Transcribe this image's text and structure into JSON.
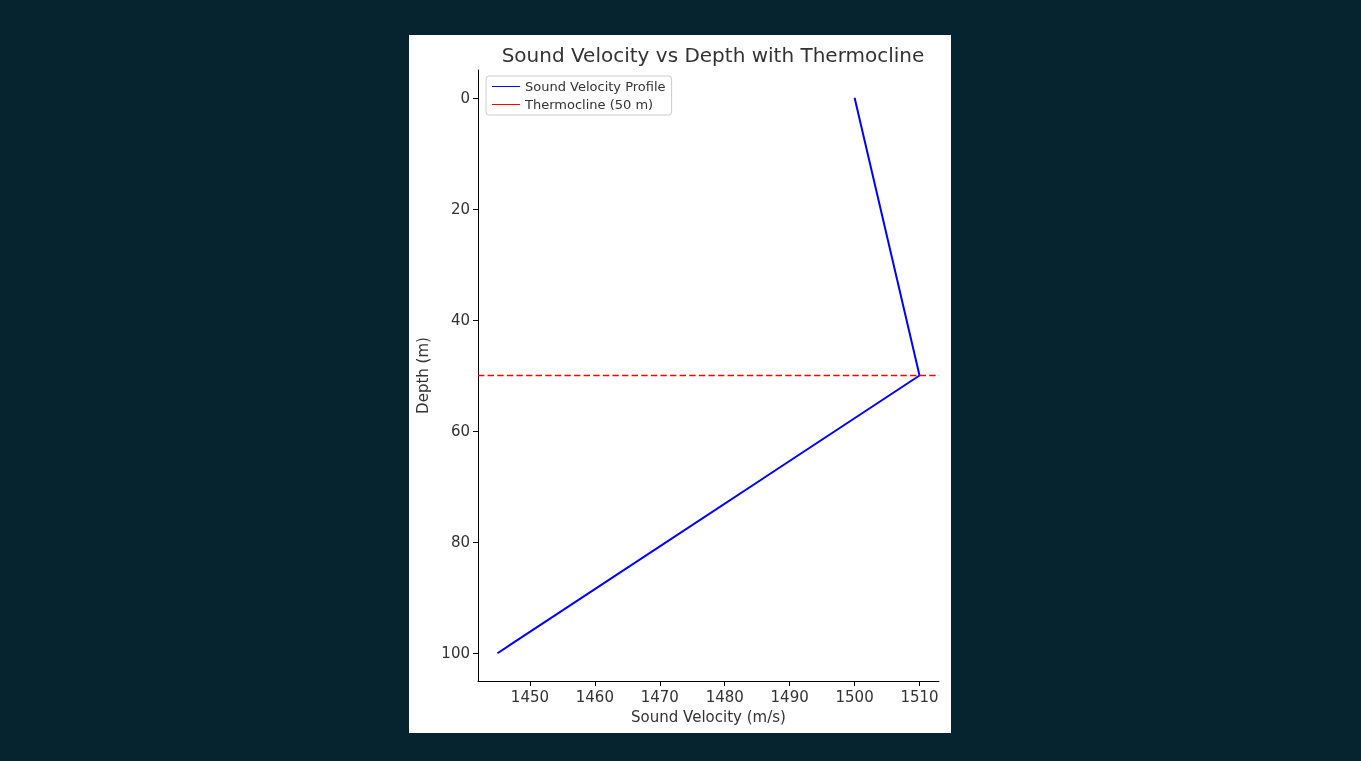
{
  "chart_data": {
    "type": "line",
    "title": "Sound Velocity vs Depth with Thermocline",
    "xlabel": "Sound Velocity (m/s)",
    "ylabel": "Depth (m)",
    "series": [
      {
        "name": "Sound Velocity Profile",
        "color": "#0000ff",
        "x": [
          1500,
          1510,
          1445
        ],
        "values": [
          0,
          50,
          100
        ]
      }
    ],
    "ref_lines": [
      {
        "axis": "y",
        "value": 50,
        "label": "Thermocline (50 m)",
        "color": "#ff0000",
        "line_style": "dashed"
      }
    ],
    "xlim": [
      1442,
      1513
    ],
    "ylim": [
      105,
      -5
    ],
    "xticks": [
      1450,
      1460,
      1470,
      1480,
      1490,
      1500,
      1510
    ],
    "yticks": [
      0,
      20,
      40,
      60,
      80,
      100
    ],
    "grid": false,
    "legend": "top left",
    "marker": "none",
    "line_style": "solid"
  }
}
